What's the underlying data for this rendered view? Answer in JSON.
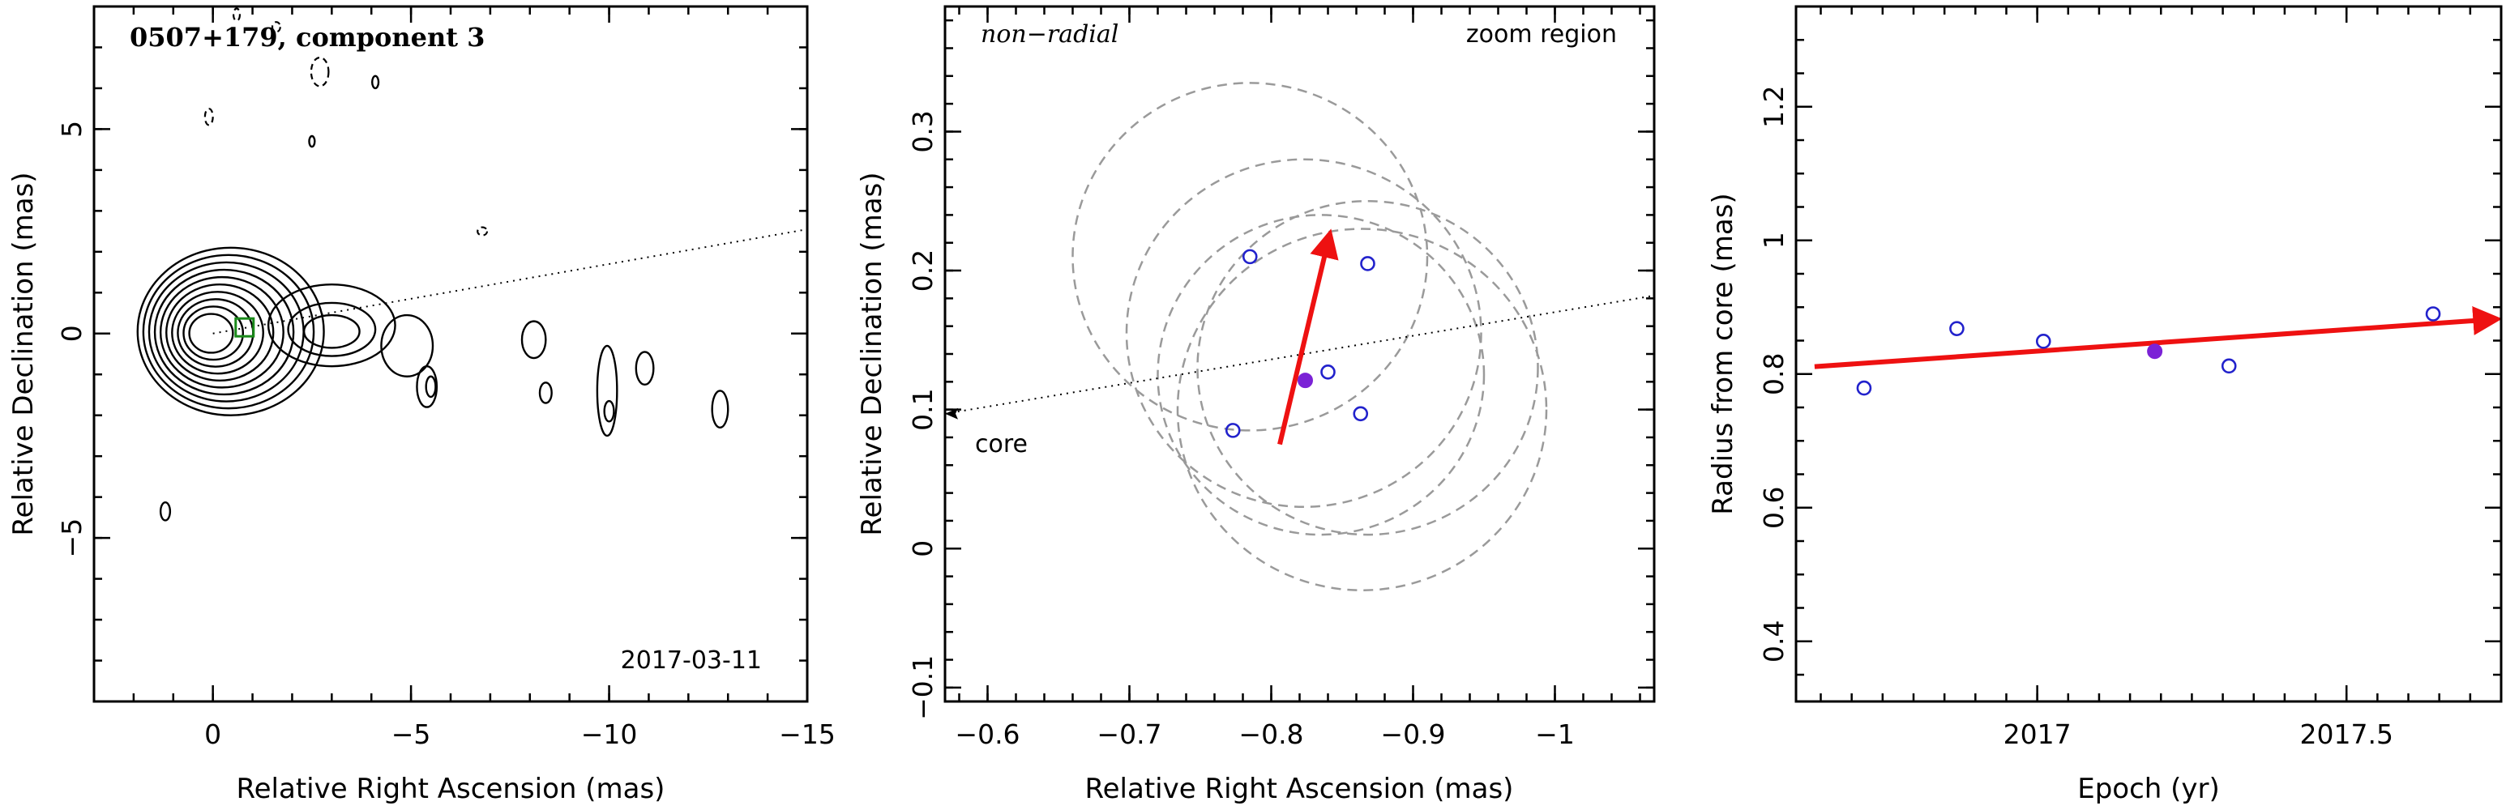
{
  "colors": {
    "axis": "#000000",
    "contour": "#000000",
    "epoch_points": "#2222cc",
    "mean_point": "#7b22d6",
    "motion_vector": "#ee1111",
    "error_circles": "#9a9a9a",
    "feature_marker": "#1a8a1a"
  },
  "chart_data": [
    {
      "panel": "map",
      "type": "contour",
      "title": "0507+179, component 3",
      "date": "2017-03-11",
      "xlabel": "Relative Right Ascension (mas)",
      "ylabel": "Relative Declination (mas)",
      "xlim": [
        3,
        -15
      ],
      "ylim": [
        -9,
        8
      ],
      "xticks": [
        0,
        -5,
        -10,
        -15
      ],
      "xtick_labels": [
        "0",
        "−5",
        "−10",
        "−15"
      ],
      "yticks": [
        -5,
        0,
        5
      ],
      "ytick_labels": [
        "−5",
        "0",
        "5"
      ],
      "core": {
        "x": 0,
        "y": 0
      },
      "core_contour_levels": 10,
      "component_marker": {
        "x": -0.8,
        "y": 0.15,
        "shape": "square"
      },
      "guide_line": {
        "from": {
          "x": 0,
          "y": 0
        },
        "to": {
          "x": -15,
          "y": 2.55
        },
        "style": "dotted"
      }
    },
    {
      "panel": "zoom",
      "type": "scatter",
      "annotation_left": "non−radial",
      "annotation_right": "zoom region",
      "core_label": "core",
      "xlabel": "Relative Right Ascension (mas)",
      "ylabel": "Relative Declination (mas)",
      "xlim": [
        -0.57,
        -1.07
      ],
      "ylim": [
        -0.11,
        0.39
      ],
      "xticks": [
        -0.6,
        -0.7,
        -0.8,
        -0.9,
        -1
      ],
      "xtick_labels": [
        "−0.6",
        "−0.7",
        "−0.8",
        "−0.9",
        "−1"
      ],
      "yticks": [
        -0.1,
        0,
        0.1,
        0.2,
        0.3
      ],
      "ytick_labels": [
        "−0.1",
        "0",
        "0.1",
        "0.2",
        "0.3"
      ],
      "epoch_positions": [
        {
          "x": -0.785,
          "y": 0.21
        },
        {
          "x": -0.868,
          "y": 0.205
        },
        {
          "x": -0.84,
          "y": 0.127
        },
        {
          "x": -0.773,
          "y": 0.085
        },
        {
          "x": -0.863,
          "y": 0.097
        }
      ],
      "mean_position": {
        "x": -0.824,
        "y": 0.121
      },
      "error_circles": [
        {
          "x": -0.785,
          "y": 0.21,
          "r": 0.125
        },
        {
          "x": -0.823,
          "y": 0.155,
          "r": 0.125
        },
        {
          "x": -0.868,
          "y": 0.13,
          "r": 0.12
        },
        {
          "x": -0.864,
          "y": 0.1,
          "r": 0.13
        },
        {
          "x": -0.835,
          "y": 0.125,
          "r": 0.115
        }
      ],
      "motion_vector": {
        "from": {
          "x": -0.806,
          "y": 0.075
        },
        "to": {
          "x": -0.841,
          "y": 0.225
        }
      },
      "guide_line": {
        "from": {
          "x": -0.57,
          "y": 0.097
        },
        "to": {
          "x": -1.07,
          "y": 0.182
        },
        "style": "dotted"
      }
    },
    {
      "panel": "radius",
      "type": "scatter",
      "xlabel": "Epoch (yr)",
      "ylabel": "Radius from core (mas)",
      "xlim": [
        2016.61,
        2017.75
      ],
      "ylim": [
        0.31,
        1.35
      ],
      "xticks": [
        2017,
        2017.5
      ],
      "xtick_labels": [
        "2017",
        "2017.5"
      ],
      "yticks": [
        0.4,
        0.6,
        0.8,
        1,
        1.2
      ],
      "ytick_labels": [
        "0.4",
        "0.6",
        "0.8",
        "1",
        "1.2"
      ],
      "points": [
        {
          "x": 2016.72,
          "y": 0.779
        },
        {
          "x": 2016.87,
          "y": 0.868
        },
        {
          "x": 2017.01,
          "y": 0.849
        },
        {
          "x": 2017.31,
          "y": 0.812
        },
        {
          "x": 2017.64,
          "y": 0.89
        }
      ],
      "mean_point": {
        "x": 2017.19,
        "y": 0.834
      },
      "trend": {
        "from": {
          "x": 2016.64,
          "y": 0.811
        },
        "to": {
          "x": 2017.74,
          "y": 0.882
        }
      }
    }
  ]
}
